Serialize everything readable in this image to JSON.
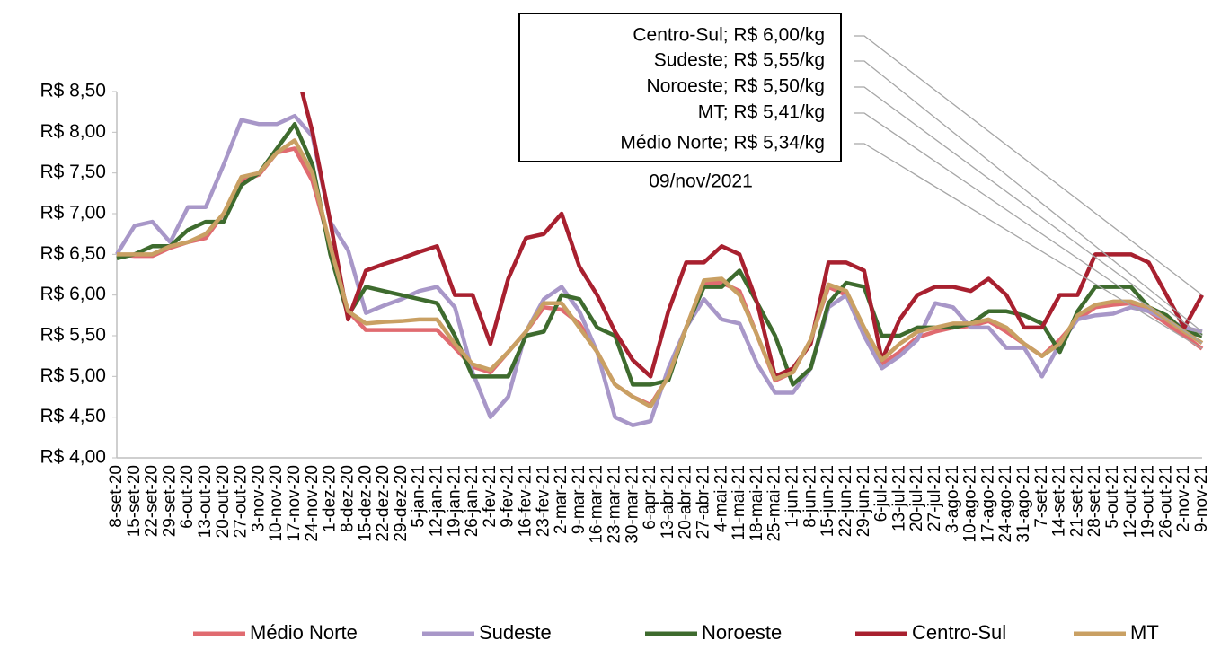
{
  "chart_data": {
    "type": "line",
    "categories": [
      "8-set-20",
      "15-set-20",
      "22-set-20",
      "29-set-20",
      "6-out-20",
      "13-out-20",
      "20-out-20",
      "27-out-20",
      "3-nov-20",
      "10-nov-20",
      "17-nov-20",
      "24-nov-20",
      "1-dez-20",
      "8-dez-20",
      "15-dez-20",
      "22-dez-20",
      "29-dez-20",
      "5-jan-21",
      "12-jan-21",
      "19-jan-21",
      "26-jan-21",
      "2-fev-21",
      "9-fev-21",
      "16-fev-21",
      "23-fev-21",
      "2-mar-21",
      "9-mar-21",
      "16-mar-21",
      "23-mar-21",
      "30-mar-21",
      "6-apr-21",
      "13-abr-21",
      "20-abr-21",
      "27-abr-21",
      "4-mai-21",
      "11-mai-21",
      "18-mai-21",
      "25-mai-21",
      "1-jun-21",
      "8-jun-21",
      "15-jun-21",
      "22-jun-21",
      "29-jun-21",
      "6-jul-21",
      "13-jul-21",
      "20-jul-21",
      "27-jul-21",
      "3-ago-21",
      "10-ago-21",
      "17-ago-21",
      "24-ago-21",
      "31-ago-21",
      "7-set-21",
      "14-set-21",
      "21-set-21",
      "28-set-21",
      "5-out-21",
      "12-out-21",
      "19-out-21",
      "26-out-21",
      "2-nov-21",
      "9-nov-21"
    ],
    "series": [
      {
        "name": "Médio Norte",
        "color": "#e06b70",
        "values": [
          6.5,
          6.48,
          6.48,
          6.58,
          6.65,
          6.7,
          7.0,
          7.4,
          7.48,
          7.75,
          7.8,
          7.4,
          6.6,
          5.8,
          5.57,
          5.57,
          5.57,
          5.57,
          5.57,
          5.35,
          5.12,
          5.05,
          5.3,
          5.55,
          5.85,
          5.82,
          5.65,
          5.3,
          4.9,
          4.75,
          4.65,
          5.0,
          5.6,
          6.15,
          6.15,
          6.05,
          5.5,
          4.95,
          5.05,
          5.45,
          6.1,
          6.0,
          5.55,
          5.15,
          5.3,
          5.48,
          5.55,
          5.6,
          5.62,
          5.68,
          5.55,
          5.4,
          5.25,
          5.45,
          5.7,
          5.85,
          5.88,
          5.9,
          5.8,
          5.65,
          5.5,
          5.34
        ]
      },
      {
        "name": "Sudeste",
        "color": "#a897c8",
        "values": [
          6.5,
          6.85,
          6.9,
          6.65,
          7.08,
          7.08,
          7.6,
          8.15,
          8.1,
          8.1,
          8.2,
          7.95,
          6.9,
          6.55,
          5.78,
          5.87,
          5.95,
          6.05,
          6.1,
          5.85,
          5.05,
          4.5,
          4.75,
          5.55,
          5.95,
          6.1,
          5.8,
          5.3,
          4.5,
          4.4,
          4.45,
          5.1,
          5.6,
          5.95,
          5.7,
          5.65,
          5.15,
          4.8,
          4.8,
          5.1,
          5.85,
          6.0,
          5.5,
          5.1,
          5.25,
          5.45,
          5.9,
          5.85,
          5.6,
          5.6,
          5.35,
          5.35,
          5.0,
          5.4,
          5.7,
          5.75,
          5.77,
          5.85,
          5.8,
          5.7,
          5.6,
          5.55
        ]
      },
      {
        "name": "Noroeste",
        "color": "#3e6b2e",
        "values": [
          6.45,
          6.5,
          6.6,
          6.6,
          6.8,
          6.9,
          6.9,
          7.35,
          7.5,
          7.8,
          8.1,
          7.6,
          6.5,
          5.75,
          6.1,
          6.05,
          6.0,
          5.95,
          5.9,
          5.5,
          5.0,
          5.0,
          5.0,
          5.5,
          5.55,
          6.0,
          5.95,
          5.6,
          5.5,
          4.9,
          4.9,
          4.95,
          5.6,
          6.1,
          6.1,
          6.3,
          5.9,
          5.5,
          4.9,
          5.1,
          5.9,
          6.15,
          6.1,
          5.5,
          5.5,
          5.6,
          5.6,
          5.6,
          5.65,
          5.8,
          5.8,
          5.75,
          5.65,
          5.3,
          5.8,
          6.1,
          6.1,
          6.1,
          5.85,
          5.75,
          5.55,
          5.5
        ]
      },
      {
        "name": "Centro-Sul",
        "color": "#a8202f",
        "values": [
          null,
          null,
          null,
          null,
          null,
          null,
          null,
          null,
          null,
          null,
          8.85,
          8.0,
          6.9,
          5.7,
          6.3,
          6.38,
          6.45,
          6.53,
          6.6,
          6.0,
          6.0,
          5.4,
          6.2,
          6.7,
          6.75,
          7.0,
          6.35,
          6.0,
          5.55,
          5.2,
          5.0,
          5.8,
          6.4,
          6.4,
          6.6,
          6.5,
          5.9,
          5.0,
          5.1,
          5.4,
          6.4,
          6.4,
          6.3,
          5.2,
          5.7,
          6.0,
          6.1,
          6.1,
          6.05,
          6.2,
          6.0,
          5.6,
          5.6,
          6.0,
          6.0,
          6.5,
          6.5,
          6.5,
          6.4,
          6.0,
          5.6,
          6.0
        ]
      },
      {
        "name": "MT",
        "color": "#c9a063",
        "values": [
          6.5,
          6.5,
          6.5,
          6.6,
          6.65,
          6.75,
          7.0,
          7.45,
          7.5,
          7.75,
          7.9,
          7.5,
          6.6,
          5.8,
          5.65,
          5.67,
          5.68,
          5.7,
          5.7,
          5.4,
          5.15,
          5.08,
          5.3,
          5.55,
          5.9,
          5.9,
          5.6,
          5.3,
          4.9,
          4.75,
          4.63,
          5.0,
          5.6,
          6.18,
          6.2,
          6.0,
          5.5,
          4.97,
          5.05,
          5.45,
          6.13,
          6.05,
          5.6,
          5.2,
          5.4,
          5.55,
          5.6,
          5.65,
          5.65,
          5.7,
          5.6,
          5.4,
          5.25,
          5.4,
          5.75,
          5.88,
          5.92,
          5.92,
          5.85,
          5.7,
          5.55,
          5.41
        ]
      }
    ],
    "ylim": [
      4,
      8.5
    ],
    "yticks": [
      {
        "value": 4,
        "label": "R$ 4,00"
      },
      {
        "value": 4.5,
        "label": "R$ 4,50"
      },
      {
        "value": 5,
        "label": "R$ 5,00"
      },
      {
        "value": 5.5,
        "label": "R$ 5,50"
      },
      {
        "value": 6,
        "label": "R$ 6,00"
      },
      {
        "value": 6.5,
        "label": "R$ 6,50"
      },
      {
        "value": 7,
        "label": "R$ 7,00"
      },
      {
        "value": 7.5,
        "label": "R$ 7,50"
      },
      {
        "value": 8,
        "label": "R$ 8,00"
      },
      {
        "value": 8.5,
        "label": "R$ 8,50"
      }
    ],
    "annotations": [
      "Centro-Sul; R$ 6,00/kg",
      "Sudeste; R$ 5,55/kg",
      "Noroeste; R$ 5,50/kg",
      "MT; R$ 5,41/kg",
      "Médio Norte; R$ 5,34/kg"
    ],
    "annotation_date": "09/nov/2021",
    "legend": "bottom"
  }
}
